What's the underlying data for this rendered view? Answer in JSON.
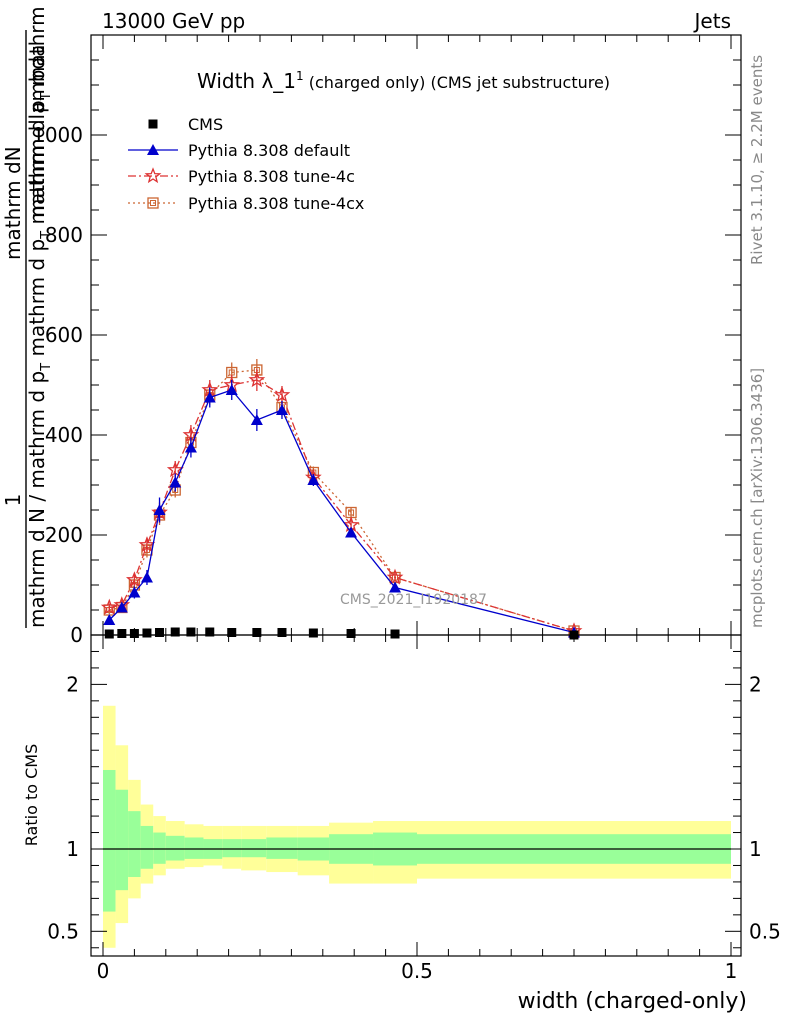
{
  "header": {
    "left": "13000 GeV pp",
    "right": "Jets",
    "rivet": "Rivet 3.1.10, ≥ 2.2M events",
    "mcplots": "mcplots.cern.ch [arXiv:1306.3436]"
  },
  "chart_data": [
    {
      "type": "line",
      "title_main": "Width λ_1",
      "title_sup": "1",
      "title_rest": " (charged only) (CMS jet substructure)",
      "watermark": "CMS_2021_I1920187",
      "ylabel_num": "mathrm dN",
      "ylabel_den1": "mathrm d p",
      "ylabel_den1b": "T",
      "ylabel_den2": " mathrm d lambda",
      "ylabel_den_sub": "mathrm d p",
      "ylabel_left": "1",
      "ylabel_left2": "mathrm d N / mathrm d p",
      "ylabel_left3": "T",
      "ylabel_left4": " mathrm d p",
      "ylabel_left5": "T",
      "ylabel_left6": " mathrm d lambda",
      "xlim": [
        0,
        1
      ],
      "ylim": [
        0,
        1200
      ],
      "yticks": [
        0,
        200,
        400,
        600,
        800,
        1000
      ],
      "ytick_labels": [
        "0",
        "200",
        "400",
        "600",
        "800",
        "1000"
      ],
      "x": [
        0.01,
        0.03,
        0.05,
        0.07,
        0.09,
        0.115,
        0.14,
        0.17,
        0.205,
        0.245,
        0.285,
        0.335,
        0.395,
        0.465,
        0.75
      ],
      "series": [
        {
          "name": "CMS",
          "color": "#000000",
          "values": [
            2,
            3,
            3,
            4,
            5,
            6,
            6,
            6,
            5,
            5,
            5,
            4,
            3,
            2,
            0
          ]
        },
        {
          "name": "Pythia 8.308 default",
          "color": "#0000cc",
          "values": [
            30,
            55,
            85,
            115,
            250,
            305,
            375,
            475,
            490,
            430,
            450,
            310,
            205,
            95,
            5
          ],
          "errors": [
            8,
            10,
            12,
            15,
            25,
            18,
            20,
            20,
            20,
            22,
            18,
            12,
            10,
            8,
            3
          ]
        },
        {
          "name": "Pythia 8.308 tune-4c",
          "color": "#dd3333",
          "values": [
            55,
            60,
            110,
            180,
            245,
            330,
            400,
            490,
            500,
            510,
            480,
            315,
            220,
            115,
            8
          ],
          "errors": [
            8,
            10,
            12,
            15,
            20,
            18,
            20,
            20,
            20,
            22,
            18,
            12,
            10,
            8,
            3
          ]
        },
        {
          "name": "Pythia 8.308 tune-4cx",
          "color": "#cc6633",
          "values": [
            50,
            55,
            100,
            170,
            240,
            290,
            385,
            480,
            525,
            530,
            455,
            325,
            245,
            115,
            8
          ],
          "errors": [
            8,
            10,
            12,
            15,
            20,
            15,
            20,
            20,
            20,
            22,
            18,
            12,
            10,
            8,
            3
          ]
        }
      ]
    },
    {
      "type": "area",
      "ylabel": "Ratio to CMS",
      "xlabel": "width (charged-only)",
      "xlim": [
        0,
        1
      ],
      "ylim": [
        0.35,
        2.3
      ],
      "xticks": [
        0,
        0.5,
        1
      ],
      "xtick_labels": [
        "0",
        "0.5",
        "1"
      ],
      "yticks": [
        0.5,
        1,
        2
      ],
      "ytick_labels": [
        "0.5",
        "1",
        "2"
      ],
      "bin_edges": [
        0,
        0.02,
        0.04,
        0.06,
        0.08,
        0.1,
        0.13,
        0.16,
        0.19,
        0.22,
        0.26,
        0.31,
        0.36,
        0.43,
        0.5,
        1.0
      ],
      "stat_band_low": [
        0.62,
        0.75,
        0.83,
        0.88,
        0.91,
        0.93,
        0.94,
        0.94,
        0.95,
        0.95,
        0.94,
        0.93,
        0.91,
        0.9,
        0.91
      ],
      "stat_band_high": [
        1.48,
        1.36,
        1.23,
        1.14,
        1.1,
        1.08,
        1.07,
        1.06,
        1.06,
        1.06,
        1.07,
        1.07,
        1.09,
        1.1,
        1.09
      ],
      "total_band_low": [
        0.4,
        0.55,
        0.7,
        0.79,
        0.84,
        0.88,
        0.89,
        0.9,
        0.88,
        0.87,
        0.86,
        0.84,
        0.79,
        0.79,
        0.82
      ],
      "total_band_high": [
        1.87,
        1.63,
        1.42,
        1.27,
        1.2,
        1.17,
        1.15,
        1.14,
        1.14,
        1.14,
        1.14,
        1.14,
        1.16,
        1.17,
        1.17
      ],
      "stat_color": "#99ff99",
      "total_color": "#ffff99"
    }
  ]
}
